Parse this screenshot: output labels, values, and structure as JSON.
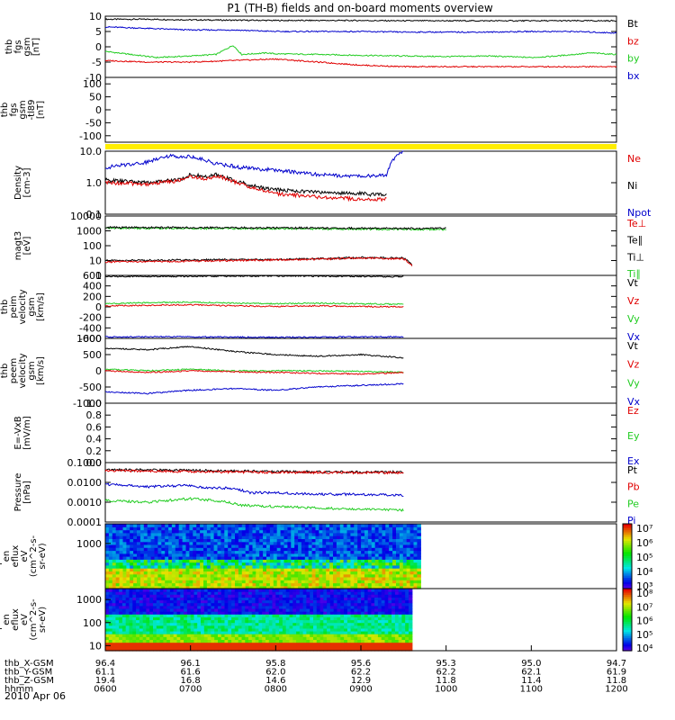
{
  "title": "P1 (TH-B) fields and on-board moments overview",
  "date": "2010 Apr 06",
  "colors": {
    "black": "#000000",
    "red": "#e00000",
    "green": "#22cc22",
    "blue": "#0000cc",
    "yellow": "#ffee00"
  },
  "chart_data": [
    {
      "type": "line",
      "ylabel": [
        "thb",
        "fgs",
        "gsm",
        "[nT]"
      ],
      "ylim": [
        -10,
        10
      ],
      "yscale": "linear",
      "ticks": [
        "10",
        "5",
        "0",
        "-5",
        "-10"
      ],
      "legend": [
        {
          "name": "Bt",
          "color": "black"
        },
        {
          "name": "bz",
          "color": "red"
        },
        {
          "name": "by",
          "color": "green"
        },
        {
          "name": "bx",
          "color": "blue"
        }
      ],
      "series": [
        {
          "name": "Bt",
          "color": "black",
          "x": [
            6.0,
            6.5,
            7.0,
            7.5,
            8.0,
            8.5,
            9.0,
            9.5,
            10.0,
            10.5,
            11.0,
            11.5,
            12.0
          ],
          "y": [
            9.0,
            9.0,
            8.8,
            8.7,
            8.6,
            8.6,
            8.6,
            8.5,
            8.5,
            8.5,
            8.5,
            8.5,
            8.5
          ]
        },
        {
          "name": "by",
          "color": "green",
          "x": [
            6.0,
            6.3,
            6.6,
            7.0,
            7.3,
            7.5,
            7.6,
            7.9,
            8.0,
            8.5,
            9.0,
            9.5,
            10.0,
            10.5,
            11.0,
            11.3,
            11.5,
            11.7,
            12.0
          ],
          "y": [
            -1.5,
            -2.5,
            -3.5,
            -3.0,
            -2.5,
            0.5,
            -2.5,
            -2.0,
            -2.3,
            -2.5,
            -2.8,
            -3.0,
            -3.2,
            -3.0,
            -3.5,
            -3.0,
            -2.5,
            -2.0,
            -2.5
          ]
        },
        {
          "name": "bx",
          "color": "blue",
          "x": [
            6.0,
            6.5,
            7.0,
            7.5,
            8.0,
            8.5,
            9.0,
            9.5,
            10.0,
            10.5,
            11.0,
            11.5,
            12.0
          ],
          "y": [
            6.5,
            6.0,
            5.5,
            5.5,
            5.0,
            5.0,
            5.0,
            4.8,
            4.8,
            4.8,
            5.0,
            5.0,
            4.5
          ]
        },
        {
          "name": "bz",
          "color": "red",
          "x": [
            6.0,
            6.5,
            7.0,
            7.5,
            8.0,
            8.5,
            9.0,
            9.5,
            10.0,
            10.5,
            11.0,
            11.5,
            12.0
          ],
          "y": [
            -4.5,
            -5.0,
            -5.0,
            -4.5,
            -4.0,
            -5.0,
            -6.0,
            -6.5,
            -6.5,
            -6.5,
            -6.5,
            -6.5,
            -6.5
          ]
        }
      ]
    },
    {
      "type": "line",
      "ylabel": [
        "thb",
        "fgs",
        "gsm",
        "-tl89",
        "[nT]"
      ],
      "ylim": [
        -125,
        125
      ],
      "yscale": "linear",
      "ticks": [
        "100",
        "50",
        "0",
        "-50",
        "-100"
      ],
      "legend": [],
      "series": []
    },
    {
      "type": "flag",
      "ylim": [
        0,
        1
      ],
      "ticks": [],
      "legend": [],
      "series": []
    },
    {
      "type": "line",
      "ylabel": [
        "Density",
        "[cm-3]"
      ],
      "ylim": [
        0.1,
        10
      ],
      "yscale": "log",
      "ticks": [
        "10.0",
        "1.0",
        "0.1"
      ],
      "legend": [
        {
          "name": "Ne",
          "color": "red"
        },
        {
          "name": "Ni",
          "color": "black"
        },
        {
          "name": "Npot",
          "color": "blue"
        }
      ],
      "series": [
        {
          "name": "Npot",
          "color": "blue",
          "x": [
            6.0,
            6.5,
            6.7,
            7.0,
            7.3,
            7.6,
            8.0,
            8.5,
            9.0,
            9.3,
            9.5
          ],
          "y": [
            3.0,
            4.5,
            7.0,
            6.8,
            4.0,
            3.0,
            2.5,
            1.8,
            1.6,
            1.7,
            10.5
          ]
        },
        {
          "name": "Ni",
          "color": "black",
          "x": [
            6.0,
            6.5,
            6.9,
            7.0,
            7.2,
            7.3,
            7.5,
            7.7,
            8.0,
            8.5,
            9.0,
            9.3
          ],
          "y": [
            1.2,
            1.0,
            1.3,
            1.8,
            1.5,
            1.8,
            1.2,
            0.8,
            0.6,
            0.5,
            0.45,
            0.4
          ]
        },
        {
          "name": "Ne",
          "color": "red",
          "x": [
            6.0,
            6.5,
            6.9,
            7.0,
            7.2,
            7.3,
            7.5,
            7.7,
            8.0,
            8.5,
            9.0,
            9.3
          ],
          "y": [
            1.0,
            0.9,
            1.2,
            1.6,
            1.3,
            1.7,
            1.1,
            0.7,
            0.45,
            0.35,
            0.3,
            0.3
          ]
        }
      ]
    },
    {
      "type": "line",
      "ylabel": [
        "magt3",
        "[eV]"
      ],
      "ylim": [
        1,
        10000
      ],
      "yscale": "log",
      "ticks": [
        "10000",
        "1000",
        "100",
        "10",
        "1"
      ],
      "legend": [
        {
          "name": "Te⊥",
          "color": "red"
        },
        {
          "name": "Te∥",
          "color": "black"
        },
        {
          "name": "Ti⊥",
          "color": "black"
        },
        {
          "name": "Ti∥",
          "color": "green"
        }
      ],
      "series": [
        {
          "name": "Ti∥",
          "color": "green",
          "x": [
            6.0,
            7.0,
            8.0,
            9.0,
            10.0
          ],
          "y": [
            1500,
            1450,
            1400,
            1300,
            1250
          ]
        },
        {
          "name": "Ti⊥",
          "color": "black",
          "x": [
            6.0,
            7.0,
            8.0,
            9.0,
            10.0
          ],
          "y": [
            1700,
            1650,
            1600,
            1500,
            1450
          ]
        },
        {
          "name": "Te∥",
          "color": "black",
          "x": [
            6.0,
            7.0,
            8.0,
            8.7,
            9.0,
            9.5,
            9.6
          ],
          "y": [
            10,
            11,
            12,
            14,
            16,
            15,
            5
          ]
        },
        {
          "name": "Te⊥",
          "color": "red",
          "x": [
            6.0,
            7.0,
            8.0,
            8.7,
            9.0,
            9.5,
            9.6
          ],
          "y": [
            8,
            9,
            11,
            13,
            15,
            13,
            4
          ]
        }
      ]
    },
    {
      "type": "line",
      "ylabel": [
        "thb",
        "peim",
        "velocity",
        "gsm",
        "[km/s]"
      ],
      "ylim": [
        -600,
        600
      ],
      "yscale": "linear",
      "ticks": [
        "600",
        "400",
        "200",
        "0",
        "-200",
        "-400",
        "-600"
      ],
      "legend": [
        {
          "name": "Vt",
          "color": "black"
        },
        {
          "name": "Vz",
          "color": "red"
        },
        {
          "name": "Vy",
          "color": "green"
        },
        {
          "name": "Vx",
          "color": "blue"
        }
      ],
      "series": [
        {
          "name": "Vt",
          "color": "black",
          "x": [
            6.0,
            7.0,
            8.0,
            9.0,
            9.5
          ],
          "y": [
            580,
            580,
            590,
            580,
            575
          ]
        },
        {
          "name": "Vy",
          "color": "green",
          "x": [
            6.0,
            6.5,
            7.0,
            7.5,
            8.0,
            8.5,
            9.0,
            9.5
          ],
          "y": [
            60,
            80,
            90,
            70,
            60,
            70,
            60,
            50
          ]
        },
        {
          "name": "Vz",
          "color": "red",
          "x": [
            6.0,
            6.5,
            7.0,
            7.5,
            8.0,
            8.5,
            9.0,
            9.5
          ],
          "y": [
            20,
            30,
            40,
            20,
            10,
            20,
            10,
            0
          ]
        },
        {
          "name": "Vx",
          "color": "blue",
          "x": [
            6.0,
            7.0,
            8.0,
            9.0,
            9.5
          ],
          "y": [
            -570,
            -570,
            -580,
            -570,
            -570
          ]
        }
      ]
    },
    {
      "type": "line",
      "ylabel": [
        "thb",
        "peem",
        "velocity",
        "gsm",
        "[km/s]"
      ],
      "ylim": [
        -1000,
        1000
      ],
      "yscale": "linear",
      "ticks": [
        "1000",
        "500",
        "0",
        "-500",
        "-1000"
      ],
      "legend": [
        {
          "name": "Vt",
          "color": "black"
        },
        {
          "name": "Vz",
          "color": "red"
        },
        {
          "name": "Vy",
          "color": "green"
        },
        {
          "name": "Vx",
          "color": "blue"
        }
      ],
      "series": [
        {
          "name": "Vt",
          "color": "black",
          "x": [
            6.0,
            6.5,
            7.0,
            7.5,
            8.0,
            8.5,
            9.0,
            9.5
          ],
          "y": [
            700,
            650,
            750,
            600,
            500,
            450,
            500,
            400
          ]
        },
        {
          "name": "Vy",
          "color": "green",
          "x": [
            6.0,
            6.5,
            7.0,
            7.5,
            8.0,
            8.5,
            9.0,
            9.5
          ],
          "y": [
            50,
            0,
            50,
            0,
            0,
            0,
            -20,
            -50
          ]
        },
        {
          "name": "Vz",
          "color": "red",
          "x": [
            6.0,
            6.5,
            7.0,
            7.5,
            8.0,
            8.5,
            9.0,
            9.5
          ],
          "y": [
            0,
            -50,
            0,
            -30,
            -50,
            -80,
            -100,
            -50
          ]
        },
        {
          "name": "Vx",
          "color": "blue",
          "x": [
            6.0,
            6.5,
            7.0,
            7.5,
            8.0,
            8.5,
            9.0,
            9.5
          ],
          "y": [
            -650,
            -700,
            -600,
            -550,
            -600,
            -500,
            -450,
            -400
          ]
        }
      ]
    },
    {
      "type": "line",
      "ylabel": [
        "E=-VxB",
        "[mV/m]"
      ],
      "ylim": [
        0,
        1
      ],
      "yscale": "linear",
      "ticks": [
        "1.0",
        "0.8",
        "0.6",
        "0.4",
        "0.2",
        "0.0"
      ],
      "legend": [
        {
          "name": "Ez",
          "color": "red"
        },
        {
          "name": "Ey",
          "color": "green"
        },
        {
          "name": "Ex",
          "color": "blue"
        }
      ],
      "series": []
    },
    {
      "type": "line",
      "ylabel": [
        "Pressure",
        "[nPa]"
      ],
      "ylim": [
        0.0001,
        0.1
      ],
      "yscale": "log",
      "ticks": [
        "0.1000",
        "0.0100",
        "0.0010",
        "0.0001"
      ],
      "legend": [
        {
          "name": "Pt",
          "color": "black"
        },
        {
          "name": "Pb",
          "color": "red"
        },
        {
          "name": "Pe",
          "color": "green"
        },
        {
          "name": "Pi",
          "color": "blue"
        }
      ],
      "series": [
        {
          "name": "Pt",
          "color": "black",
          "x": [
            6.0,
            7.0,
            8.0,
            9.0,
            9.5
          ],
          "y": [
            0.045,
            0.04,
            0.035,
            0.033,
            0.033
          ]
        },
        {
          "name": "Pb",
          "color": "red",
          "x": [
            6.0,
            7.0,
            8.0,
            9.0,
            9.5
          ],
          "y": [
            0.04,
            0.035,
            0.032,
            0.031,
            0.031
          ]
        },
        {
          "name": "Pi",
          "color": "blue",
          "x": [
            6.0,
            6.5,
            6.9,
            7.2,
            7.5,
            7.7,
            8.0,
            8.5,
            9.0,
            9.5
          ],
          "y": [
            0.008,
            0.006,
            0.007,
            0.0055,
            0.005,
            0.003,
            0.003,
            0.0025,
            0.0025,
            0.0022
          ]
        },
        {
          "name": "Pe",
          "color": "green",
          "x": [
            6.0,
            6.5,
            7.0,
            7.3,
            7.6,
            8.0,
            8.5,
            9.0,
            9.5
          ],
          "y": [
            0.0012,
            0.001,
            0.0015,
            0.0012,
            0.0007,
            0.0006,
            0.0005,
            0.00045,
            0.0004
          ]
        }
      ]
    },
    {
      "type": "heatmap",
      "ylabel": [
        "thb",
        "peir",
        "en",
        "eflux",
        "eV",
        "(cm^2-s-",
        "sr-eV)"
      ],
      "ylim": [
        5,
        10000
      ],
      "yscale": "log",
      "ticks": [
        "1000"
      ],
      "colorbar": {
        "min": 10000.0,
        "max": 10000000.0,
        "labels": [
          "10⁷",
          "10⁶",
          "10⁵",
          "10⁴",
          "10³"
        ]
      },
      "time_range": [
        6.0,
        9.7
      ]
    },
    {
      "type": "heatmap",
      "ylabel": [
        "thb",
        "peer",
        "en",
        "eflux",
        "eV",
        "(cm^2-s-",
        "sr-eV)"
      ],
      "ylim": [
        6,
        3000
      ],
      "yscale": "log",
      "ticks": [
        "1000",
        "100",
        "10"
      ],
      "colorbar": {
        "min": 10000.0,
        "max": 100000000.0,
        "labels": [
          "10⁸",
          "10⁷",
          "10⁶",
          "10⁵",
          "10⁴"
        ]
      },
      "time_range": [
        6.0,
        9.6
      ]
    }
  ],
  "xaxis": {
    "range": [
      6,
      12
    ],
    "tick_hours": [
      6,
      7,
      8,
      9,
      10,
      11,
      12
    ],
    "rows": [
      {
        "label": "thb_X-GSM",
        "values": [
          "96.4",
          "96.1",
          "95.8",
          "95.6",
          "95.3",
          "95.0",
          "94.7"
        ]
      },
      {
        "label": "thb_Y-GSM",
        "values": [
          "61.1",
          "61.6",
          "62.0",
          "62.2",
          "62.2",
          "62.1",
          "61.9"
        ]
      },
      {
        "label": "thb_Z-GSM",
        "values": [
          "19.4",
          "16.8",
          "14.6",
          "12.9",
          "11.8",
          "11.4",
          "11.8"
        ]
      },
      {
        "label": "hhmm",
        "values": [
          "0600",
          "0700",
          "0800",
          "0900",
          "1000",
          "1100",
          "1200"
        ]
      }
    ]
  }
}
